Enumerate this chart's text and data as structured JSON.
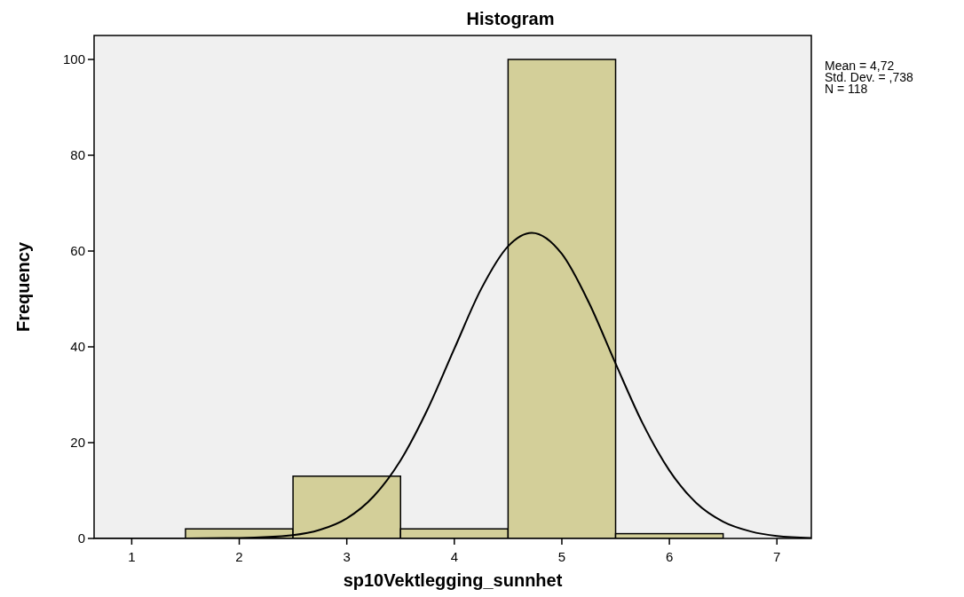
{
  "chart_data": {
    "type": "histogram",
    "title": "Histogram",
    "xlabel": "sp10Vektlegging_sunnhet",
    "ylabel": "Frequency",
    "annotations": [
      "Mean = 4,72",
      "Std. Dev. = ,738",
      "N = 118"
    ],
    "bins": [
      1.5,
      2.5,
      3.5,
      4.5,
      5.5,
      6.5
    ],
    "values": [
      2,
      13,
      2,
      100,
      1
    ],
    "color": "#d3cf99",
    "xlim": [
      0.65,
      7.32
    ],
    "xticks": [
      1,
      2,
      3,
      4,
      5,
      6,
      7
    ],
    "ylim": [
      0,
      105
    ],
    "yticks": [
      0,
      20,
      40,
      60,
      80,
      100
    ],
    "series": [
      {
        "type": "line",
        "color": "#000000",
        "x": [
          0.65,
          1.5,
          2.0,
          2.5,
          2.75,
          3.0,
          3.25,
          3.5,
          3.75,
          4.0,
          4.25,
          4.5,
          4.72,
          5.0,
          5.25,
          5.5,
          5.75,
          6.0,
          6.25,
          6.5,
          6.75,
          7.0,
          7.32
        ],
        "values": [
          0,
          0,
          0.1,
          0.7,
          1.8,
          4.2,
          8.8,
          16.3,
          26.9,
          39.6,
          52.1,
          61.0,
          63.8,
          59.4,
          49.3,
          36.5,
          24.1,
          14.2,
          7.4,
          3.5,
          1.5,
          0.5,
          0.1
        ]
      }
    ]
  }
}
